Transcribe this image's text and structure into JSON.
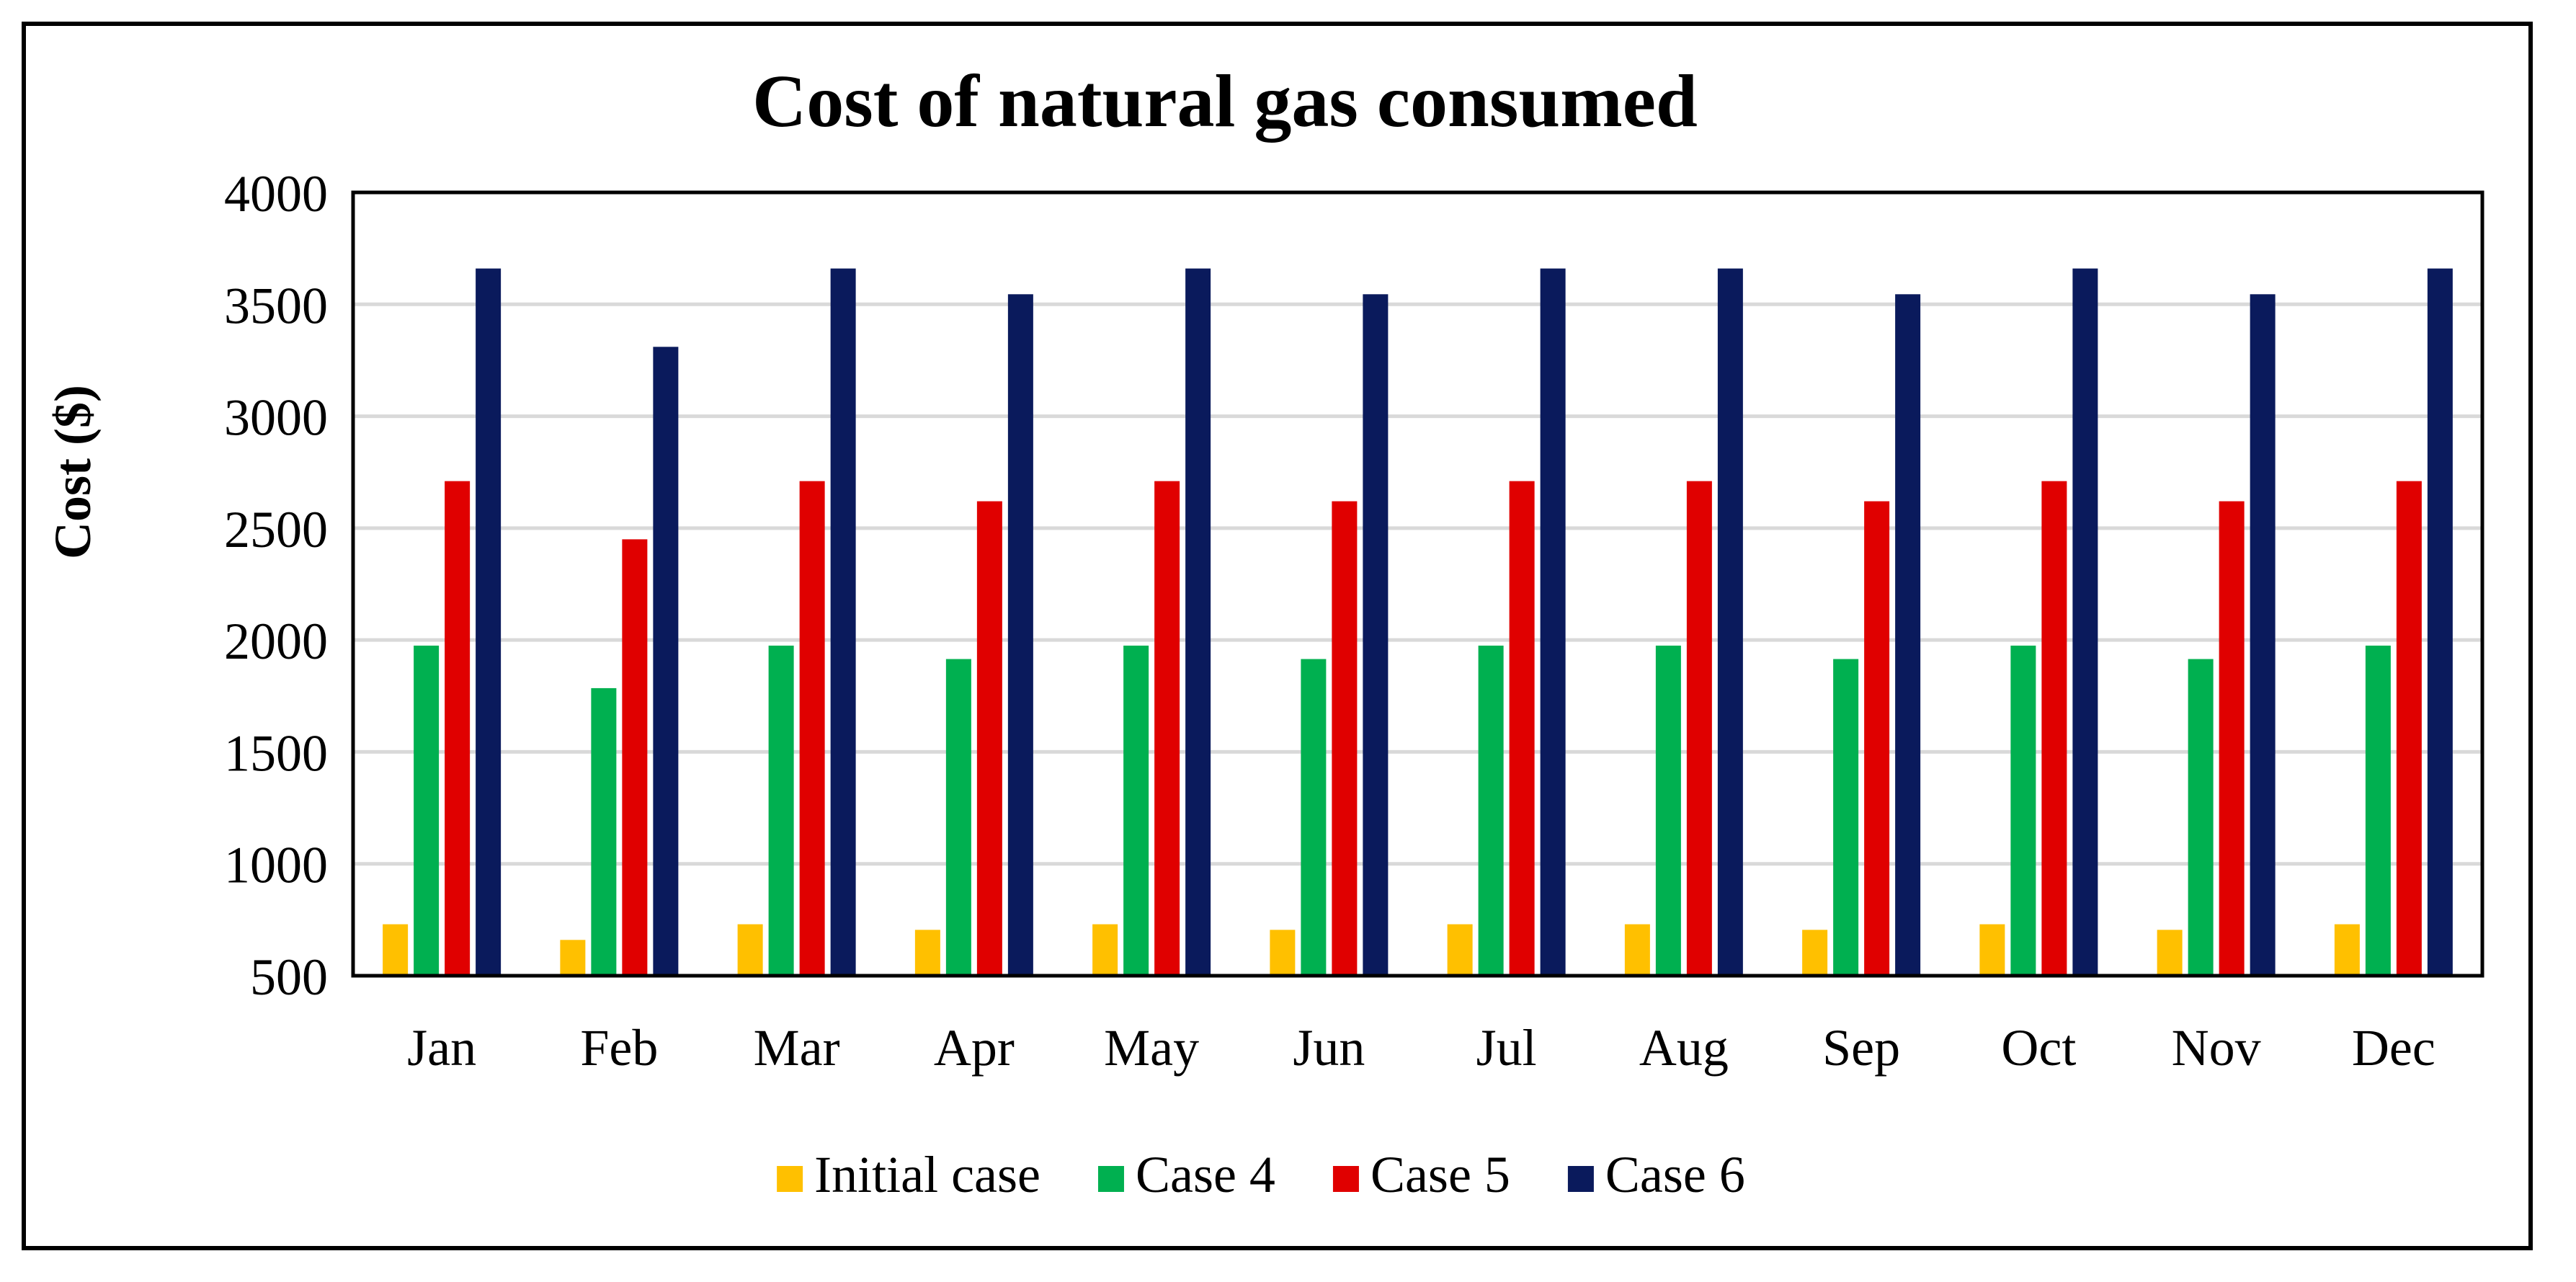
{
  "chart_data": {
    "type": "bar",
    "title": "Cost of natural gas consumed",
    "xlabel": "",
    "ylabel": "Cost ($)",
    "ylim": [
      500,
      4000
    ],
    "yticks": [
      500,
      1000,
      1500,
      2000,
      2500,
      3000,
      3500,
      4000
    ],
    "grid": true,
    "legend_position": "bottom",
    "categories": [
      "Jan",
      "Feb",
      "Mar",
      "Apr",
      "May",
      "Jun",
      "Jul",
      "Aug",
      "Sep",
      "Oct",
      "Nov",
      "Dec"
    ],
    "series": [
      {
        "name": "Initial case",
        "color": "#FFC000",
        "values": [
          730,
          660,
          730,
          705,
          730,
          705,
          730,
          730,
          705,
          730,
          705,
          730
        ]
      },
      {
        "name": "Case 4",
        "color": "#00B050",
        "values": [
          1975,
          1785,
          1975,
          1915,
          1975,
          1915,
          1975,
          1975,
          1915,
          1975,
          1915,
          1975
        ]
      },
      {
        "name": "Case 5",
        "color": "#E00000",
        "values": [
          2710,
          2450,
          2710,
          2620,
          2710,
          2620,
          2710,
          2710,
          2620,
          2710,
          2620,
          2710
        ]
      },
      {
        "name": "Case 6",
        "color": "#0A1A5C",
        "values": [
          3660,
          3310,
          3660,
          3545,
          3660,
          3545,
          3660,
          3660,
          3545,
          3660,
          3545,
          3660
        ]
      }
    ]
  }
}
